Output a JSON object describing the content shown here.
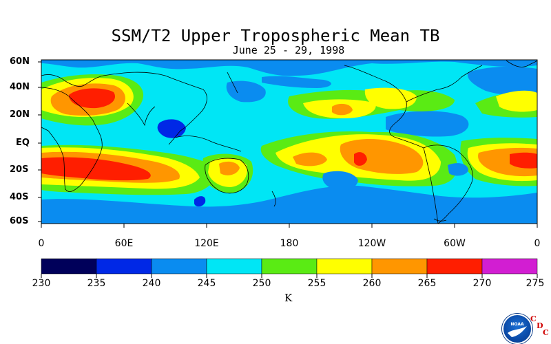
{
  "header": {
    "title": "SSM/T2 Upper Tropospheric Mean TB",
    "subtitle": "June 25 - 29, 1998"
  },
  "axes": {
    "lat_labels": [
      "60N",
      "40N",
      "20N",
      "EQ",
      "20S",
      "40S",
      "60S"
    ],
    "lon_labels": [
      "0",
      "60E",
      "120E",
      "180",
      "120W",
      "60W",
      "0"
    ]
  },
  "colorbar": {
    "tick_labels": [
      "230",
      "235",
      "240",
      "245",
      "250",
      "255",
      "260",
      "265",
      "270",
      "275"
    ],
    "unit": "K",
    "colors": [
      "#00005a",
      "#0028e6",
      "#0a8cf0",
      "#00e6f5",
      "#5aeb14",
      "#ffff00",
      "#ff9600",
      "#ff1e00",
      "#d21ed2"
    ]
  },
  "logo": {
    "agency": "NOAA",
    "letters": [
      "C",
      "D",
      "C"
    ]
  }
}
